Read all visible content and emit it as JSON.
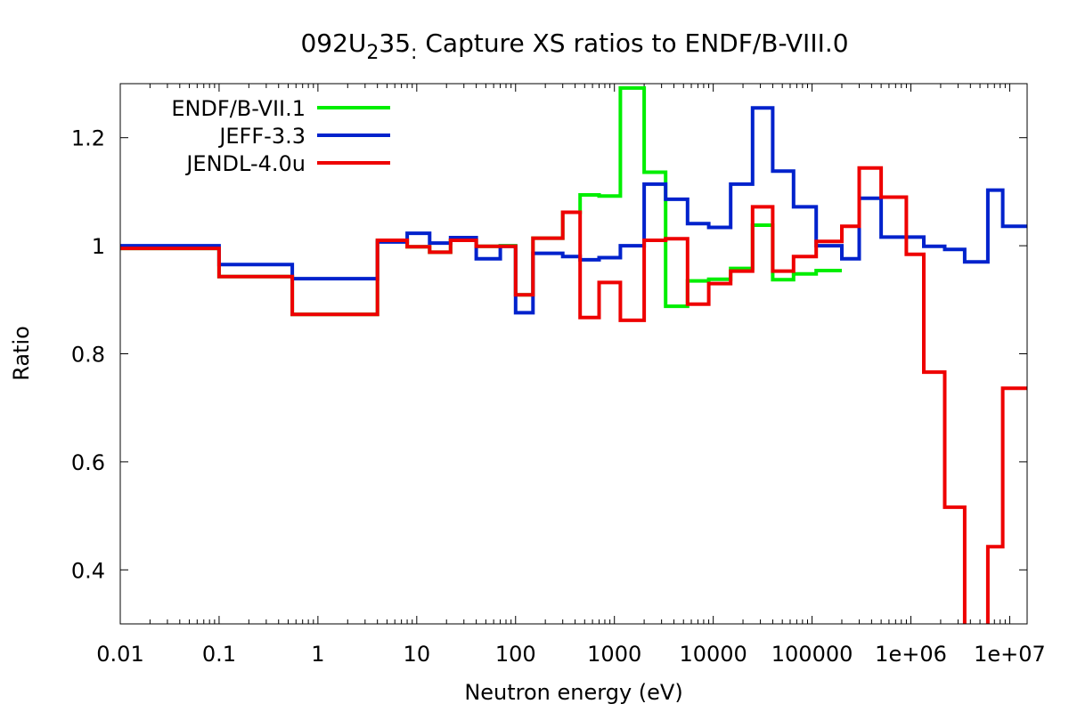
{
  "chart_data": {
    "type": "line",
    "title_parts": {
      "pre": "092U",
      "sub": "2",
      "mid": "35",
      "sub2": ":",
      "post": " Capture XS ratios to ENDF/B-VIII.0"
    },
    "xlabel": "Neutron energy (eV)",
    "ylabel": "Ratio",
    "xscale": "log",
    "xlim": [
      0.01,
      15000000
    ],
    "ylim": [
      0.3,
      1.3
    ],
    "xticks": [
      {
        "v": 0.01,
        "label": "0.01"
      },
      {
        "v": 0.1,
        "label": "0.1"
      },
      {
        "v": 1,
        "label": "1"
      },
      {
        "v": 10,
        "label": "10"
      },
      {
        "v": 100,
        "label": "100"
      },
      {
        "v": 1000,
        "label": "1000"
      },
      {
        "v": 10000,
        "label": "10000"
      },
      {
        "v": 100000,
        "label": "100000"
      },
      {
        "v": 1000000,
        "label": "1e+06"
      },
      {
        "v": 10000000,
        "label": "1e+07"
      }
    ],
    "yticks": [
      {
        "v": 0.4,
        "label": "0.4"
      },
      {
        "v": 0.6,
        "label": "0.6"
      },
      {
        "v": 0.8,
        "label": "0.8"
      },
      {
        "v": 1.0,
        "label": "1"
      },
      {
        "v": 1.2,
        "label": "1.2"
      }
    ],
    "legend_position": "top-left",
    "bin_edges": [
      0.01,
      0.1,
      0.55,
      4,
      8,
      13.5,
      22,
      40,
      70,
      100,
      150,
      300,
      450,
      700,
      1150,
      2000,
      3300,
      5500,
      9000,
      15000,
      25000,
      40000,
      65000,
      110000,
      200000,
      300000,
      500000,
      900000,
      1350000,
      2200000,
      3500000,
      6000000,
      8500000,
      15000000
    ],
    "series": [
      {
        "name": "ENDF/B-VII.1",
        "color": "#00ee00",
        "values": [
          0.995,
          0.943,
          0.873,
          1.01,
          0.998,
          0.988,
          1.01,
          0.999,
          1.0,
          0.909,
          1.014,
          1.062,
          1.094,
          1.092,
          1.292,
          1.136,
          0.888,
          0.935,
          0.938,
          0.958,
          1.038,
          0.937,
          0.948,
          0.954,
          null,
          null,
          null,
          null,
          null,
          null,
          null,
          null,
          null
        ]
      },
      {
        "name": "JEFF-3.3",
        "color": "#0022cc",
        "values": [
          1.0,
          0.965,
          0.939,
          1.007,
          1.023,
          1.005,
          1.015,
          0.976,
          0.999,
          0.876,
          0.986,
          0.98,
          0.974,
          0.978,
          1.0,
          1.114,
          1.086,
          1.041,
          1.034,
          1.114,
          1.255,
          1.138,
          1.072,
          1.0,
          0.976,
          1.088,
          1.016,
          1.016,
          0.999,
          0.993,
          0.97,
          1.103,
          1.036
        ]
      },
      {
        "name": "JENDL-4.0u",
        "color": "#ee0000",
        "values": [
          0.995,
          0.943,
          0.873,
          1.01,
          0.998,
          0.988,
          1.01,
          0.999,
          0.999,
          0.909,
          1.014,
          1.062,
          0.867,
          0.932,
          0.862,
          1.01,
          1.013,
          0.892,
          0.93,
          0.953,
          1.072,
          0.953,
          0.98,
          1.008,
          1.036,
          1.144,
          1.09,
          0.984,
          0.766,
          0.516,
          0.29,
          0.443,
          0.736
        ]
      }
    ]
  }
}
